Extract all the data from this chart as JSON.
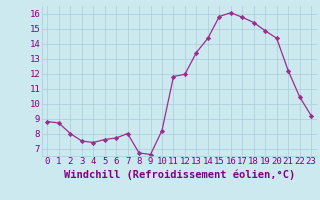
{
  "x": [
    0,
    1,
    2,
    3,
    4,
    5,
    6,
    7,
    8,
    9,
    10,
    11,
    12,
    13,
    14,
    15,
    16,
    17,
    18,
    19,
    20,
    21,
    22,
    23
  ],
  "y": [
    8.8,
    8.7,
    8.0,
    7.5,
    7.4,
    7.6,
    7.7,
    8.0,
    6.7,
    6.6,
    8.2,
    11.8,
    11.95,
    13.4,
    14.35,
    15.8,
    16.05,
    15.75,
    15.4,
    14.85,
    14.35,
    12.2,
    10.45,
    9.2
  ],
  "line_color": "#9b2d8e",
  "marker": "D",
  "marker_size": 2.2,
  "bg_color": "#cce9f0",
  "grid_color": "#aacdd8",
  "xlabel": "Windchill (Refroidissement éolien,°C)",
  "xlim": [
    -0.5,
    23.5
  ],
  "ylim": [
    6.5,
    16.5
  ],
  "yticks": [
    7,
    8,
    9,
    10,
    11,
    12,
    13,
    14,
    15,
    16
  ],
  "xticks": [
    0,
    1,
    2,
    3,
    4,
    5,
    6,
    7,
    8,
    9,
    10,
    11,
    12,
    13,
    14,
    15,
    16,
    17,
    18,
    19,
    20,
    21,
    22,
    23
  ],
  "font_color": "#800080",
  "tick_font_size": 6.5,
  "xlabel_font_size": 7.5
}
